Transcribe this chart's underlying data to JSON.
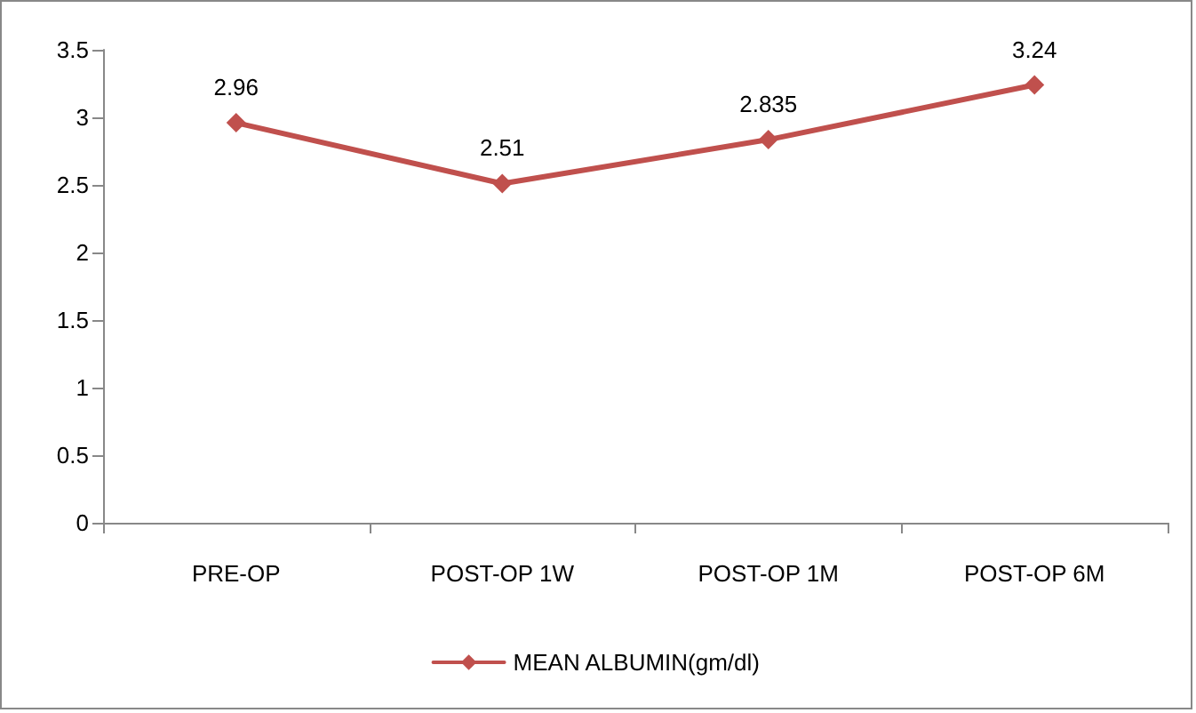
{
  "chart_data": {
    "type": "line",
    "categories": [
      "PRE-OP",
      "POST-OP 1W",
      "POST-OP 1M",
      "POST-OP 6M"
    ],
    "series": [
      {
        "name": "MEAN ALBUMIN(gm/dl)",
        "color": "#c0504d",
        "values": [
          2.96,
          2.51,
          2.835,
          3.24
        ]
      }
    ],
    "ylim": [
      0,
      3.5
    ],
    "yticks": [
      0,
      0.5,
      1,
      1.5,
      2,
      2.5,
      3,
      3.5
    ],
    "grid": false,
    "legend": "bottom",
    "marker": "diamond",
    "line_style": "solid",
    "data_labels": true
  }
}
